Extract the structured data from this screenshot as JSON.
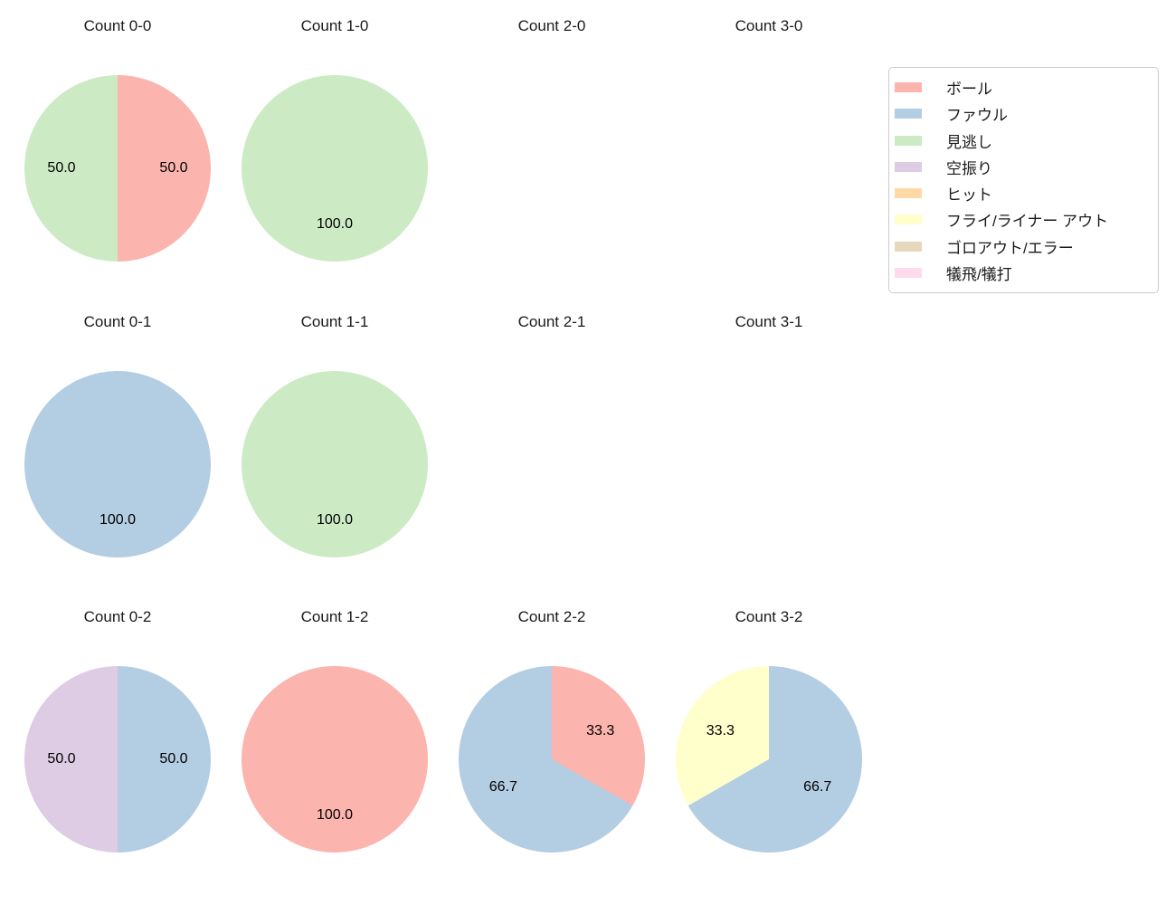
{
  "chart_data": {
    "type": "pie",
    "title": "",
    "layout": {
      "rows": 3,
      "cols": 4,
      "grid_order": "row-major"
    },
    "value_format": "percent_one_decimal",
    "start_angle": "top",
    "direction": "clockwise",
    "label_radius_fraction": 0.6,
    "legend": {
      "position": "upper-right",
      "entries": [
        {
          "label": "ボール",
          "color": "#fbb4ae"
        },
        {
          "label": "ファウル",
          "color": "#b3cde3"
        },
        {
          "label": "見逃し",
          "color": "#ccebc5"
        },
        {
          "label": "空振り",
          "color": "#decbe4"
        },
        {
          "label": "ヒット",
          "color": "#fed9a6"
        },
        {
          "label": "フライ/ライナー アウト",
          "color": "#ffffcc"
        },
        {
          "label": "ゴロアウト/エラー",
          "color": "#e5d8bd"
        },
        {
          "label": "犠飛/犠打",
          "color": "#fddaec"
        }
      ]
    },
    "pies": [
      {
        "title": "Count 0-0",
        "slices": [
          {
            "label": "ボール",
            "value": 50.0
          },
          {
            "label": "見逃し",
            "value": 50.0
          }
        ]
      },
      {
        "title": "Count 1-0",
        "slices": [
          {
            "label": "見逃し",
            "value": 100.0
          }
        ]
      },
      {
        "title": "Count 2-0",
        "slices": []
      },
      {
        "title": "Count 3-0",
        "slices": []
      },
      {
        "title": "Count 0-1",
        "slices": [
          {
            "label": "ファウル",
            "value": 100.0
          }
        ]
      },
      {
        "title": "Count 1-1",
        "slices": [
          {
            "label": "見逃し",
            "value": 100.0
          }
        ]
      },
      {
        "title": "Count 2-1",
        "slices": []
      },
      {
        "title": "Count 3-1",
        "slices": []
      },
      {
        "title": "Count 0-2",
        "slices": [
          {
            "label": "ファウル",
            "value": 50.0
          },
          {
            "label": "空振り",
            "value": 50.0
          }
        ]
      },
      {
        "title": "Count 1-2",
        "slices": [
          {
            "label": "ボール",
            "value": 100.0
          }
        ]
      },
      {
        "title": "Count 2-2",
        "slices": [
          {
            "label": "ボール",
            "value": 33.3
          },
          {
            "label": "ファウル",
            "value": 66.7
          }
        ]
      },
      {
        "title": "Count 3-2",
        "slices": [
          {
            "label": "ファウル",
            "value": 66.7
          },
          {
            "label": "フライ/ライナー アウト",
            "value": 33.3
          }
        ]
      }
    ]
  }
}
